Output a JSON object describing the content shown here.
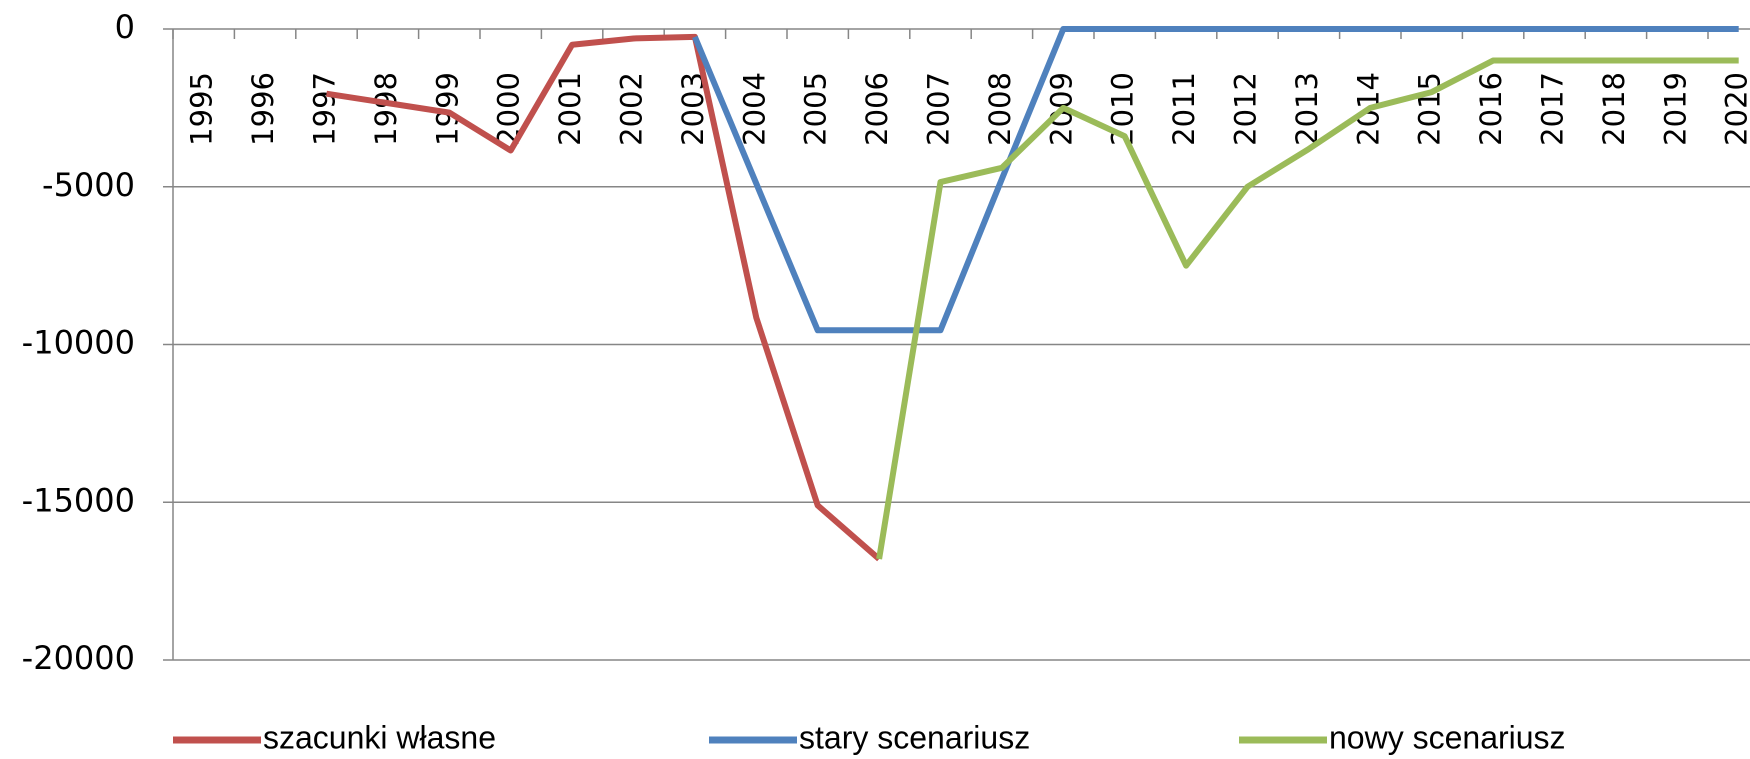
{
  "chart_data": {
    "type": "line",
    "categories": [
      "1995",
      "1996",
      "1997",
      "1998",
      "1999",
      "2000",
      "2001",
      "2002",
      "2003",
      "2004",
      "2005",
      "2006",
      "2007",
      "2008",
      "2009",
      "2010",
      "2011",
      "2012",
      "2013",
      "2014",
      "2015",
      "2016",
      "2017",
      "2018",
      "2019",
      "2020"
    ],
    "series": [
      {
        "name": "szacunki własne",
        "color": "#c0504d",
        "values": [
          null,
          null,
          -2050,
          -2350,
          -2650,
          -3850,
          -500,
          -300,
          -250,
          -9150,
          -15100,
          -16800,
          null,
          null,
          null,
          null,
          null,
          null,
          null,
          null,
          null,
          null,
          null,
          null,
          null,
          null
        ]
      },
      {
        "name": "stary scenariusz",
        "color": "#4f81bd",
        "values": [
          null,
          null,
          null,
          null,
          null,
          null,
          null,
          null,
          -250,
          -4900,
          -9550,
          -9550,
          -9550,
          -4750,
          0,
          0,
          0,
          0,
          0,
          0,
          0,
          0,
          0,
          0,
          0,
          0
        ]
      },
      {
        "name": "nowy scenariusz",
        "color": "#9bbb59",
        "values": [
          null,
          null,
          null,
          null,
          null,
          null,
          null,
          null,
          null,
          null,
          null,
          -16800,
          -4850,
          -4400,
          -2500,
          -3400,
          -7500,
          -5000,
          -3800,
          -2500,
          -2000,
          -1000,
          -1000,
          -1000,
          -1000,
          -1000
        ]
      }
    ],
    "ylim": [
      -20000,
      0
    ],
    "yticks": [
      0,
      -5000,
      -10000,
      -15000,
      -20000
    ],
    "grid": true
  }
}
